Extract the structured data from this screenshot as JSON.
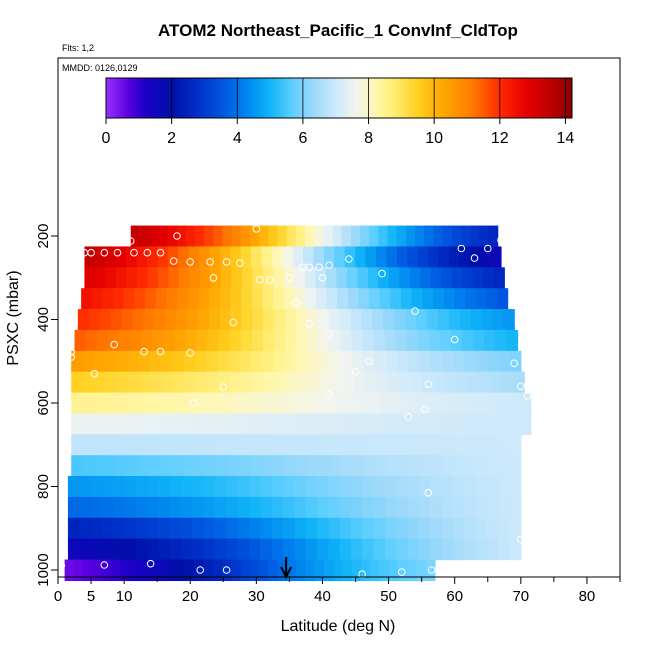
{
  "chart_data": {
    "type": "heatmap",
    "title": "ATOM2 Northeast_Pacific_1 ConvInf_CldTop",
    "annotations": {
      "flights": "Flts: 1,2",
      "dates": "MMDD: 0126,0129"
    },
    "xlabel": "Latitude (deg N)",
    "ylabel": "PSXC (mbar)",
    "xlim": [
      0,
      85
    ],
    "ylim": [
      1000,
      100
    ],
    "x_ticks": [
      0,
      5,
      10,
      20,
      30,
      40,
      50,
      60,
      70,
      80
    ],
    "y_ticks": [
      200,
      400,
      600,
      800,
      1000
    ],
    "colorbar": {
      "range": [
        0,
        14.2
      ],
      "ticks": [
        0,
        2,
        4,
        6,
        8,
        10,
        12,
        14
      ]
    },
    "bands": [
      {
        "p": 200,
        "x0": 11,
        "x1": 66.5,
        "v0": 13.5,
        "v1": 2.5
      },
      {
        "p": 250,
        "x0": 4,
        "x1": 67,
        "v0": 13.5,
        "v1": 1.5
      },
      {
        "p": 300,
        "x0": 4,
        "x1": 67.5,
        "v0": 13,
        "v1": 2.5
      },
      {
        "p": 350,
        "x0": 3.5,
        "x1": 68,
        "v0": 12.5,
        "v1": 3.5
      },
      {
        "p": 400,
        "x0": 3,
        "x1": 69,
        "v0": 12,
        "v1": 4.5
      },
      {
        "p": 450,
        "x0": 2.5,
        "x1": 69.5,
        "v0": 11.5,
        "v1": 5
      },
      {
        "p": 500,
        "x0": 2,
        "x1": 70,
        "v0": 10.5,
        "v1": 6
      },
      {
        "p": 550,
        "x0": 2,
        "x1": 70.5,
        "v0": 9.5,
        "v1": 6.5
      },
      {
        "p": 600,
        "x0": 2,
        "x1": 71.5,
        "v0": 8.5,
        "v1": 7
      },
      {
        "p": 650,
        "x0": 2,
        "x1": 71.5,
        "v0": 7.5,
        "v1": 7
      },
      {
        "p": 700,
        "x0": 2,
        "x1": 70,
        "v0": 6.8,
        "v1": 7
      },
      {
        "p": 750,
        "x0": 2,
        "x1": 70,
        "v0": 5.5,
        "v1": 7
      },
      {
        "p": 800,
        "x0": 1.5,
        "x1": 70,
        "v0": 4.5,
        "v1": 7
      },
      {
        "p": 850,
        "x0": 1.5,
        "x1": 70,
        "v0": 3.8,
        "v1": 7
      },
      {
        "p": 900,
        "x0": 1.5,
        "x1": 70,
        "v0": 2.5,
        "v1": 7
      },
      {
        "p": 950,
        "x0": 1.5,
        "x1": 70,
        "v0": 1.5,
        "v1": 7
      },
      {
        "p": 1000,
        "x0": 1,
        "x1": 57,
        "v0": 0.5,
        "v1": 6
      }
    ],
    "sample_points": [
      [
        11,
        212
      ],
      [
        18,
        200
      ],
      [
        30,
        183
      ],
      [
        61,
        230
      ],
      [
        63,
        253
      ],
      [
        65,
        230
      ],
      [
        67,
        210
      ],
      [
        4,
        240
      ],
      [
        5,
        240
      ],
      [
        7,
        240
      ],
      [
        9,
        240
      ],
      [
        11.5,
        240
      ],
      [
        13.5,
        240
      ],
      [
        15.5,
        240
      ],
      [
        17.5,
        260
      ],
      [
        20,
        262
      ],
      [
        23,
        262
      ],
      [
        25.5,
        262
      ],
      [
        27.5,
        265
      ],
      [
        37,
        275
      ],
      [
        38,
        275
      ],
      [
        39.5,
        275
      ],
      [
        41,
        270
      ],
      [
        44,
        255
      ],
      [
        49,
        290
      ],
      [
        23.5,
        300
      ],
      [
        30.5,
        305
      ],
      [
        32,
        305
      ],
      [
        35,
        300
      ],
      [
        40,
        300
      ],
      [
        36,
        360
      ],
      [
        26.5,
        407
      ],
      [
        38,
        410
      ],
      [
        41,
        435
      ],
      [
        54,
        380
      ],
      [
        8.5,
        460
      ],
      [
        2,
        478
      ],
      [
        2,
        490
      ],
      [
        13,
        477
      ],
      [
        15.5,
        477
      ],
      [
        20,
        480
      ],
      [
        47,
        500
      ],
      [
        60,
        448
      ],
      [
        69,
        505
      ],
      [
        5.5,
        530
      ],
      [
        45,
        525
      ],
      [
        25,
        562
      ],
      [
        70,
        560
      ],
      [
        56,
        555
      ],
      [
        20.5,
        600
      ],
      [
        41,
        580
      ],
      [
        71,
        583
      ],
      [
        53,
        633
      ],
      [
        55.5,
        615
      ],
      [
        56,
        815
      ],
      [
        70,
        927
      ],
      [
        0.5,
        990
      ],
      [
        7,
        988
      ],
      [
        14,
        985
      ],
      [
        21.5,
        1000
      ],
      [
        25.5,
        1000
      ],
      [
        46,
        1010
      ],
      [
        52,
        1005
      ],
      [
        56.5,
        1000
      ]
    ],
    "marker": {
      "x": 34.5
    }
  }
}
